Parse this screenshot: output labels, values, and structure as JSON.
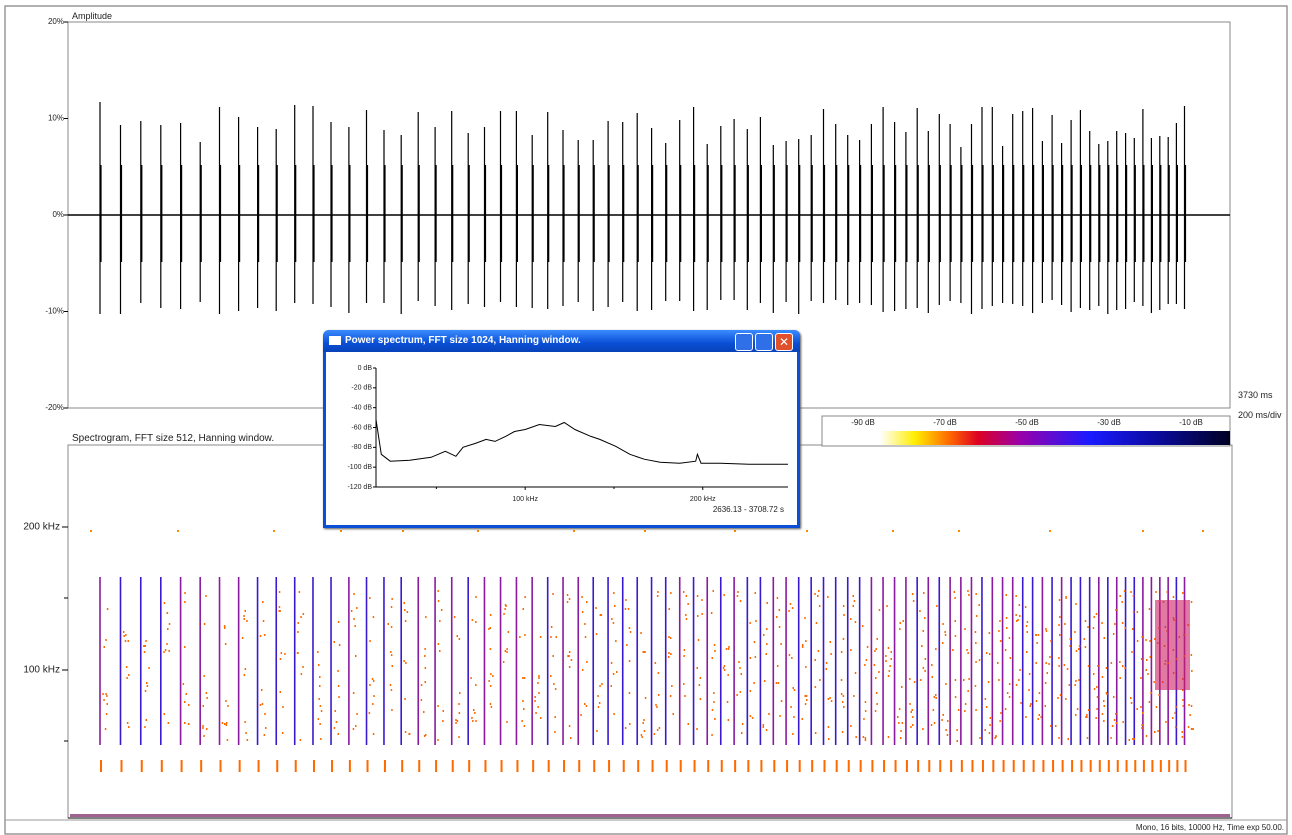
{
  "waveform": {
    "axis_label": "Amplitude",
    "yticks": [
      "20%",
      "10%",
      "0%",
      "-10%",
      "-20%"
    ],
    "time_total": "3730 ms",
    "time_scale": "200 ms/div"
  },
  "spectrogram": {
    "title": "Spectrogram, FFT size 512, Hanning window.",
    "yticks": [
      "200 kHz",
      "100 kHz"
    ],
    "colorbar": [
      "-90 dB",
      "-70 dB",
      "-50 dB",
      "-30 dB",
      "-10 dB"
    ]
  },
  "power_spectrum": {
    "window_title": "Power spectrum, FFT size 1024, Hanning window.",
    "range_label": "2636.13 - 3708.72 s",
    "chart_data": {
      "type": "line",
      "x": [
        16,
        19,
        24,
        35,
        47,
        55,
        61,
        65,
        72,
        78,
        83,
        89,
        94,
        100,
        108,
        117,
        122,
        128,
        137,
        142,
        151,
        159,
        167,
        176,
        187,
        196,
        197,
        199,
        210,
        226,
        248
      ],
      "values": [
        -52,
        -87,
        -94,
        -93,
        -90,
        -84,
        -89,
        -80,
        -76,
        -72,
        -74,
        -69,
        -64,
        -62,
        -57,
        -59,
        -55,
        -62,
        -69,
        -72,
        -79,
        -87,
        -92,
        -95,
        -96,
        -94,
        -87,
        -96,
        -96,
        -97,
        -97
      ],
      "xlim": [
        16,
        248
      ],
      "ylim": [
        -120,
        0
      ],
      "xticks": [
        {
          "value": 100,
          "label": "100 kHz"
        },
        {
          "value": 200,
          "label": "200 kHz"
        }
      ],
      "yticks": [
        {
          "value": 0,
          "label": "0 dB"
        },
        {
          "value": -20,
          "label": "-20 dB"
        },
        {
          "value": -40,
          "label": "-40 dB"
        },
        {
          "value": -60,
          "label": "-60 dB"
        },
        {
          "value": -80,
          "label": "-80 dB"
        },
        {
          "value": -100,
          "label": "-100 dB"
        },
        {
          "value": -120,
          "label": "-120 dB"
        }
      ]
    }
  },
  "window": {
    "status": "Mono, 16 bits, 10000 Hz, Time exp 50.00."
  }
}
